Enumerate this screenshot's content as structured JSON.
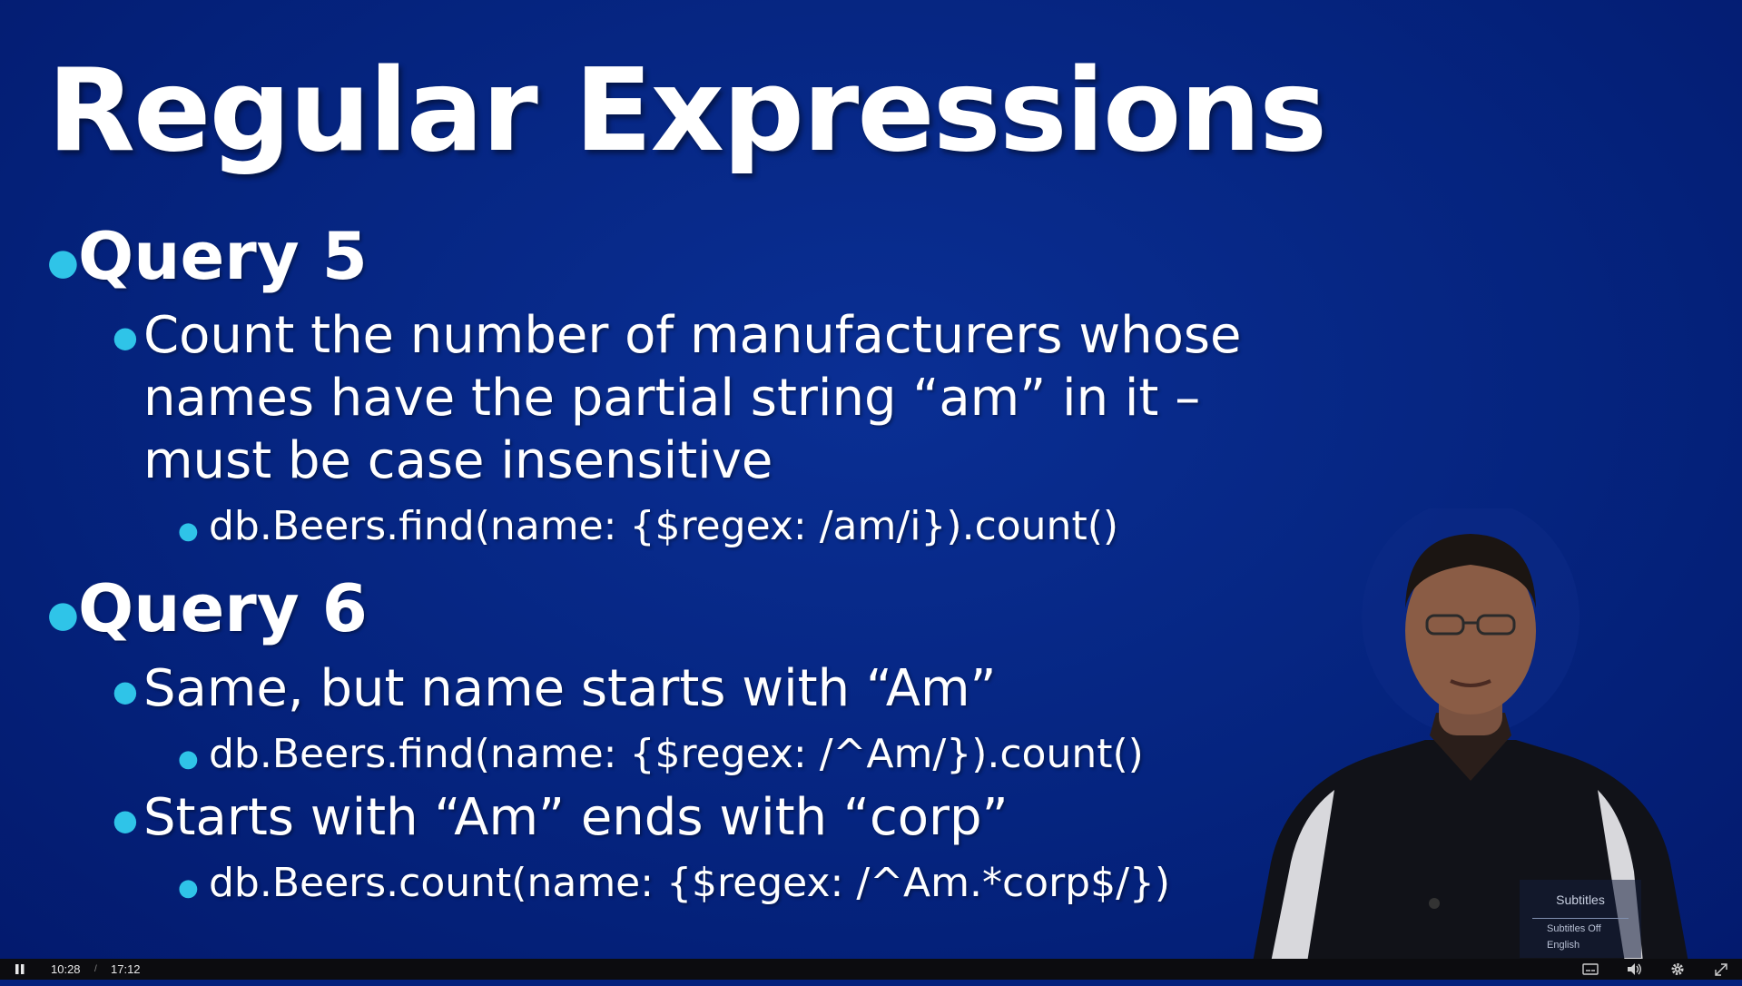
{
  "slide": {
    "title": "Regular Expressions",
    "query5": {
      "heading": "Query 5",
      "desc_line1": "Count the number of manufacturers whose",
      "desc_line2": "names have the partial string “am” in it –",
      "desc_line3": "must be case insensitive",
      "code": "db.Beers.find(name: {$regex: /am/i}).count()"
    },
    "query6": {
      "heading": "Query 6",
      "item1": "Same, but name starts with “Am”",
      "code1": "db.Beers.find(name: {$regex: /^Am/}).count()",
      "item2": "Starts with “Am” ends with “corp”",
      "code2": "db.Beers.count(name: {$regex: /^Am.*corp$/})"
    },
    "bullet_color": "#2fc4e8",
    "background_color": "#05247f"
  },
  "subtitles_menu": {
    "title": "Subtitles",
    "options": [
      "Subtitles Off",
      "English"
    ]
  },
  "player": {
    "current_time": "10:28",
    "separator": "/",
    "duration": "17:12",
    "icons": [
      "pause-icon",
      "captions-icon",
      "volume-icon",
      "gear-icon",
      "exit-fullscreen-icon"
    ]
  }
}
